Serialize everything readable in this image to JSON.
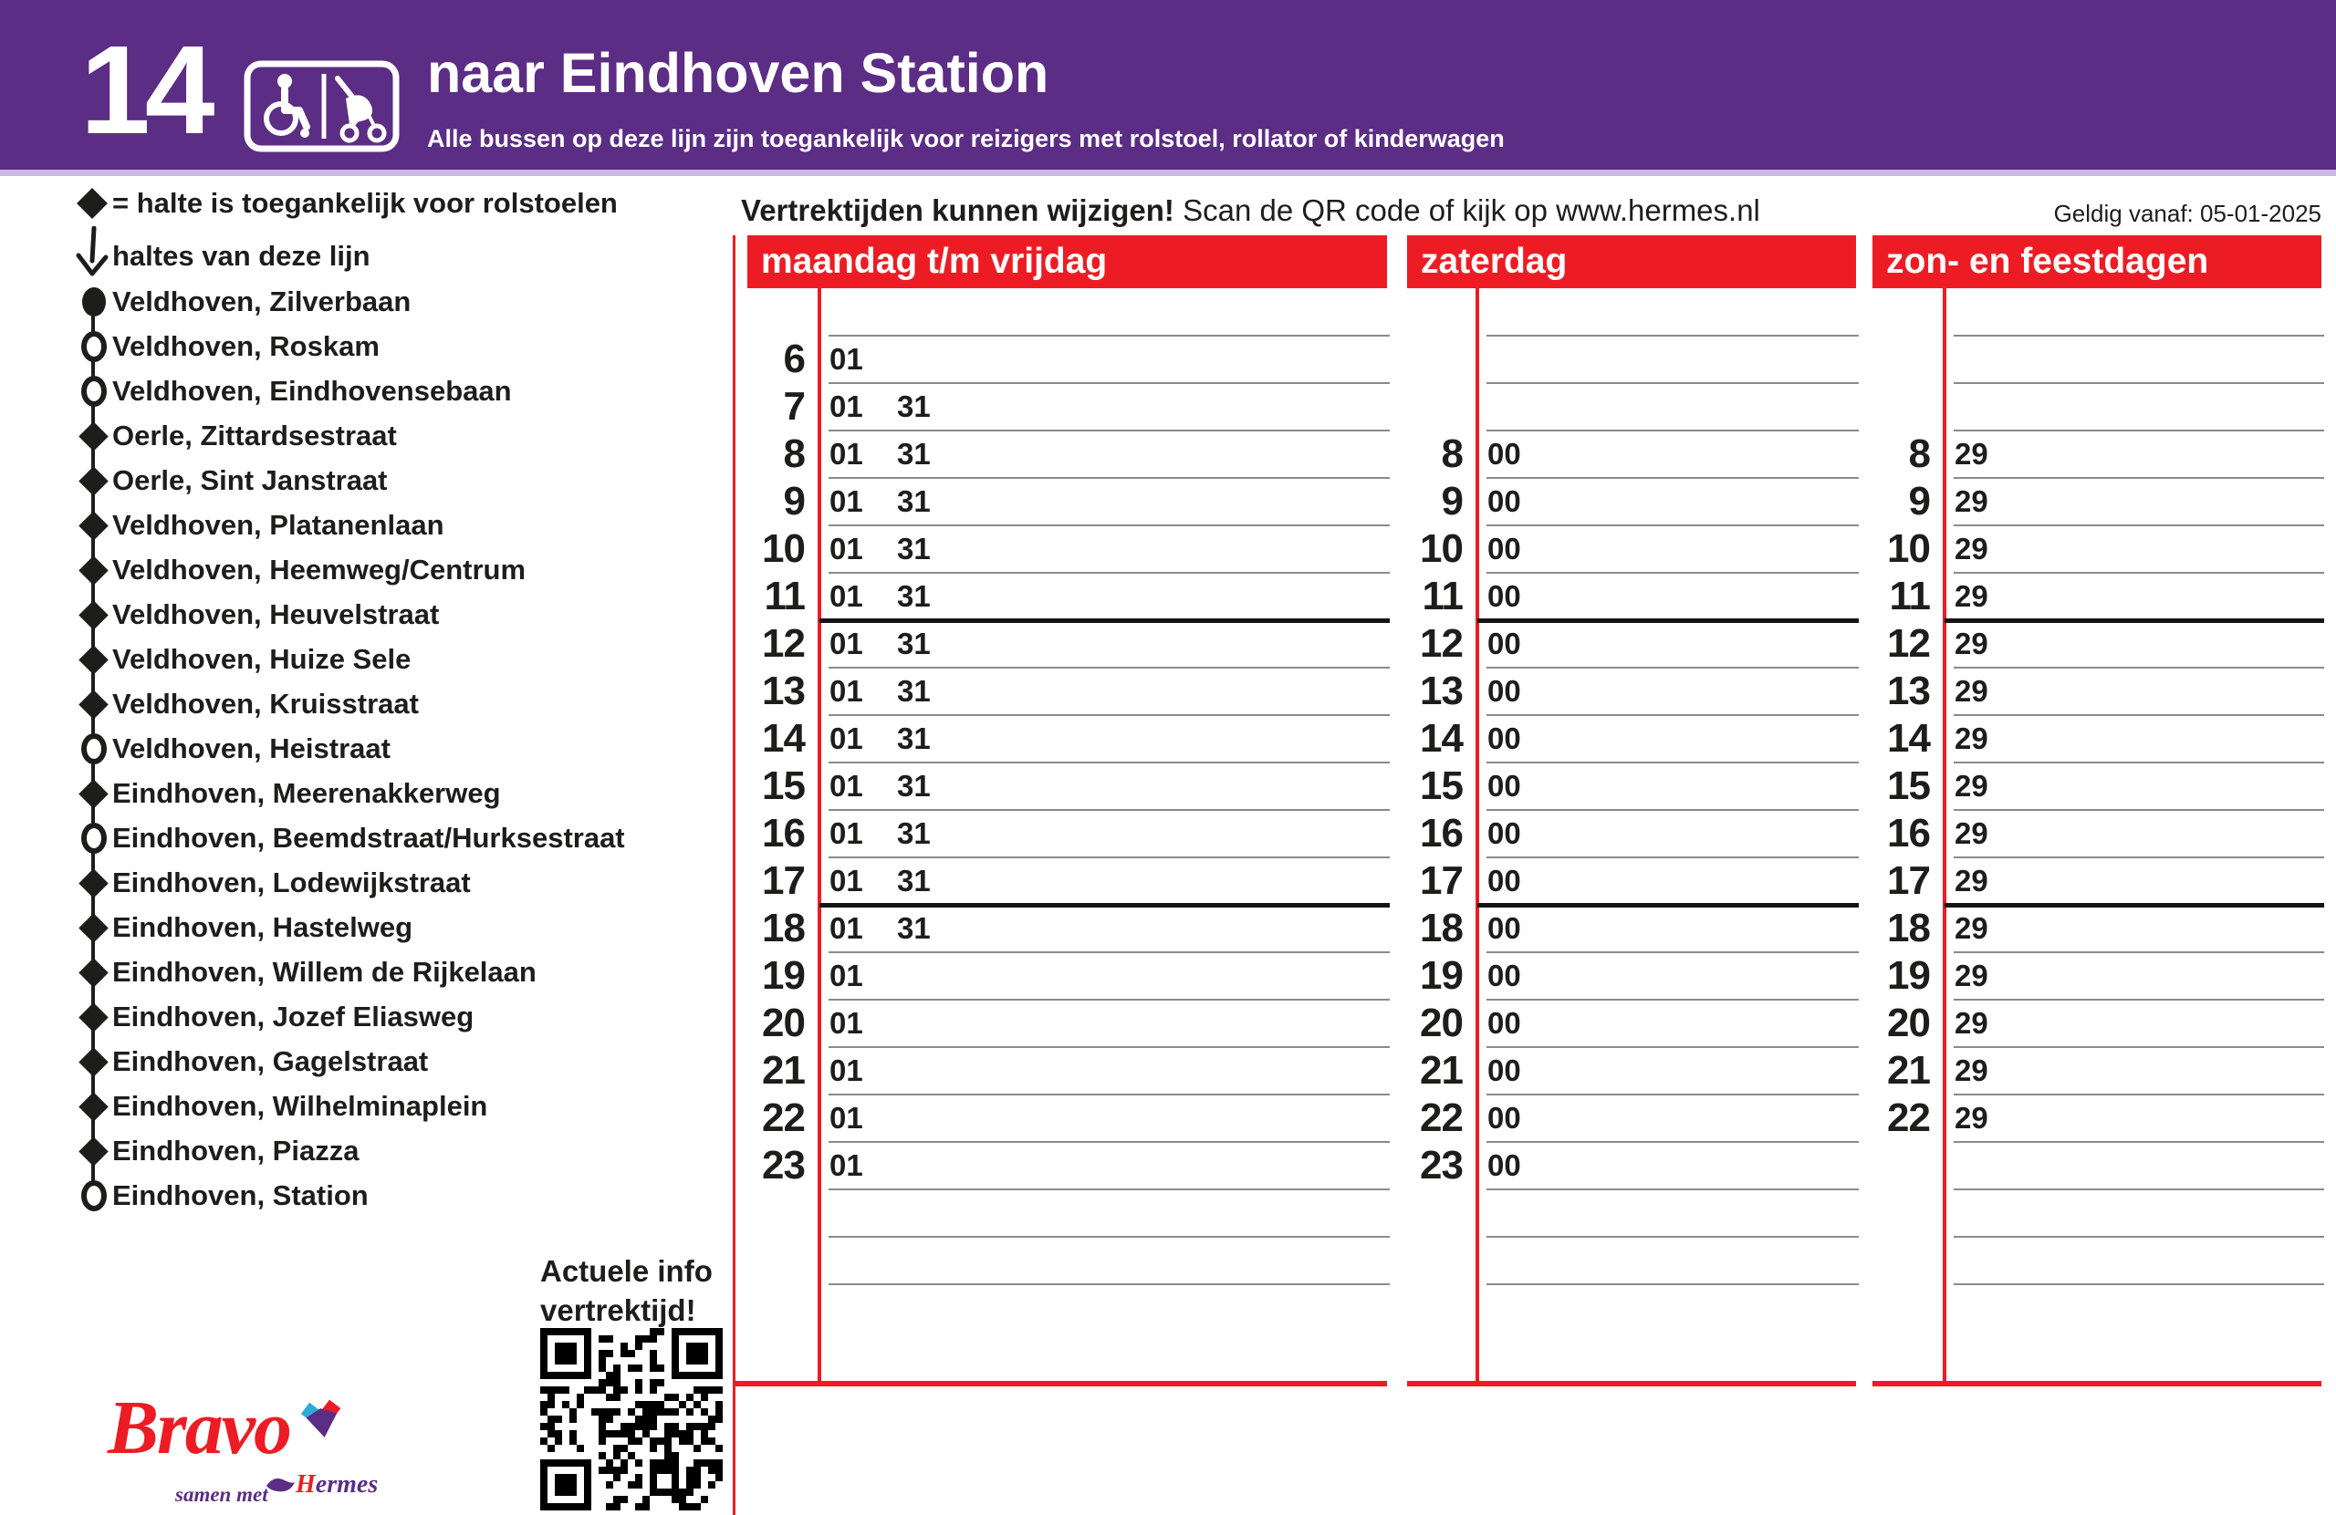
{
  "header": {
    "line_number": "14",
    "title": "naar Eindhoven Station",
    "subtitle": "Alle bussen op deze lijn zijn toegankelijk voor reizigers met rolstoel, rollator of kinderwagen"
  },
  "legend": {
    "wheelchair_note": "= halte is toegankelijk voor rolstoelen",
    "stops_note": "haltes van deze lijn"
  },
  "stops": [
    {
      "name": "Veldhoven, Zilverbaan",
      "symbol": "filled-circle"
    },
    {
      "name": "Veldhoven, Roskam",
      "symbol": "open-circle"
    },
    {
      "name": "Veldhoven, Eindhovensebaan",
      "symbol": "open-circle"
    },
    {
      "name": "Oerle, Zittardsestraat",
      "symbol": "diamond"
    },
    {
      "name": "Oerle, Sint Janstraat",
      "symbol": "diamond"
    },
    {
      "name": "Veldhoven, Platanenlaan",
      "symbol": "diamond"
    },
    {
      "name": "Veldhoven, Heemweg/Centrum",
      "symbol": "diamond"
    },
    {
      "name": "Veldhoven, Heuvelstraat",
      "symbol": "diamond"
    },
    {
      "name": "Veldhoven, Huize Sele",
      "symbol": "diamond"
    },
    {
      "name": "Veldhoven, Kruisstraat",
      "symbol": "diamond"
    },
    {
      "name": "Veldhoven, Heistraat",
      "symbol": "open-circle"
    },
    {
      "name": "Eindhoven, Meerenakkerweg",
      "symbol": "diamond"
    },
    {
      "name": "Eindhoven, Beemdstraat/Hurksestraat",
      "symbol": "open-circle"
    },
    {
      "name": "Eindhoven, Lodewijkstraat",
      "symbol": "diamond"
    },
    {
      "name": "Eindhoven, Hastelweg",
      "symbol": "diamond"
    },
    {
      "name": "Eindhoven, Willem de Rijkelaan",
      "symbol": "diamond"
    },
    {
      "name": "Eindhoven, Jozef Eliasweg",
      "symbol": "diamond"
    },
    {
      "name": "Eindhoven, Gagelstraat",
      "symbol": "diamond"
    },
    {
      "name": "Eindhoven, Wilhelminaplein",
      "symbol": "diamond"
    },
    {
      "name": "Eindhoven, Piazza",
      "symbol": "diamond"
    },
    {
      "name": "Eindhoven, Station",
      "symbol": "open-circle"
    }
  ],
  "notice": {
    "bold": "Vertrektijden kunnen wijzigen!",
    "regular": " Scan de QR code of kijk op www.hermes.nl",
    "valid_from": "Geldig vanaf: 05-01-2025"
  },
  "qr": {
    "caption_line1": "Actuele info",
    "caption_line2": "vertrektijd!"
  },
  "footer": {
    "brand": "Bravo",
    "tagline": "samen met",
    "partner_initial": "H",
    "partner_rest": "ermes"
  },
  "colors": {
    "purple": "#5b2d84",
    "red": "#ed1c24",
    "lavender": "#cbb7e0",
    "cyan": "#2eaadc",
    "black": "#1d1d1b"
  },
  "timetable": {
    "columns": [
      {
        "label": "maandag t/m vrijdag",
        "rows": [
          {
            "hour": "6",
            "minutes": [
              "01"
            ]
          },
          {
            "hour": "7",
            "minutes": [
              "01",
              "31"
            ]
          },
          {
            "hour": "8",
            "minutes": [
              "01",
              "31"
            ]
          },
          {
            "hour": "9",
            "minutes": [
              "01",
              "31"
            ]
          },
          {
            "hour": "10",
            "minutes": [
              "01",
              "31"
            ]
          },
          {
            "hour": "11",
            "minutes": [
              "01",
              "31"
            ]
          },
          {
            "hour": "12",
            "minutes": [
              "01",
              "31"
            ]
          },
          {
            "hour": "13",
            "minutes": [
              "01",
              "31"
            ]
          },
          {
            "hour": "14",
            "minutes": [
              "01",
              "31"
            ]
          },
          {
            "hour": "15",
            "minutes": [
              "01",
              "31"
            ]
          },
          {
            "hour": "16",
            "minutes": [
              "01",
              "31"
            ]
          },
          {
            "hour": "17",
            "minutes": [
              "01",
              "31"
            ]
          },
          {
            "hour": "18",
            "minutes": [
              "01",
              "31"
            ]
          },
          {
            "hour": "19",
            "minutes": [
              "01"
            ]
          },
          {
            "hour": "20",
            "minutes": [
              "01"
            ]
          },
          {
            "hour": "21",
            "minutes": [
              "01"
            ]
          },
          {
            "hour": "22",
            "minutes": [
              "01"
            ]
          },
          {
            "hour": "23",
            "minutes": [
              "01"
            ]
          }
        ]
      },
      {
        "label": "zaterdag",
        "rows": [
          {
            "hour": "8",
            "minutes": [
              "00"
            ]
          },
          {
            "hour": "9",
            "minutes": [
              "00"
            ]
          },
          {
            "hour": "10",
            "minutes": [
              "00"
            ]
          },
          {
            "hour": "11",
            "minutes": [
              "00"
            ]
          },
          {
            "hour": "12",
            "minutes": [
              "00"
            ]
          },
          {
            "hour": "13",
            "minutes": [
              "00"
            ]
          },
          {
            "hour": "14",
            "minutes": [
              "00"
            ]
          },
          {
            "hour": "15",
            "minutes": [
              "00"
            ]
          },
          {
            "hour": "16",
            "minutes": [
              "00"
            ]
          },
          {
            "hour": "17",
            "minutes": [
              "00"
            ]
          },
          {
            "hour": "18",
            "minutes": [
              "00"
            ]
          },
          {
            "hour": "19",
            "minutes": [
              "00"
            ]
          },
          {
            "hour": "20",
            "minutes": [
              "00"
            ]
          },
          {
            "hour": "21",
            "minutes": [
              "00"
            ]
          },
          {
            "hour": "22",
            "minutes": [
              "00"
            ]
          },
          {
            "hour": "23",
            "minutes": [
              "00"
            ]
          }
        ]
      },
      {
        "label": "zon- en feestdagen",
        "rows": [
          {
            "hour": "8",
            "minutes": [
              "29"
            ]
          },
          {
            "hour": "9",
            "minutes": [
              "29"
            ]
          },
          {
            "hour": "10",
            "minutes": [
              "29"
            ]
          },
          {
            "hour": "11",
            "minutes": [
              "29"
            ]
          },
          {
            "hour": "12",
            "minutes": [
              "29"
            ]
          },
          {
            "hour": "13",
            "minutes": [
              "29"
            ]
          },
          {
            "hour": "14",
            "minutes": [
              "29"
            ]
          },
          {
            "hour": "15",
            "minutes": [
              "29"
            ]
          },
          {
            "hour": "16",
            "minutes": [
              "29"
            ]
          },
          {
            "hour": "17",
            "minutes": [
              "29"
            ]
          },
          {
            "hour": "18",
            "minutes": [
              "29"
            ]
          },
          {
            "hour": "19",
            "minutes": [
              "29"
            ]
          },
          {
            "hour": "20",
            "minutes": [
              "29"
            ]
          },
          {
            "hour": "21",
            "minutes": [
              "29"
            ]
          },
          {
            "hour": "22",
            "minutes": [
              "29"
            ]
          }
        ]
      }
    ],
    "first_hour": 6
  }
}
